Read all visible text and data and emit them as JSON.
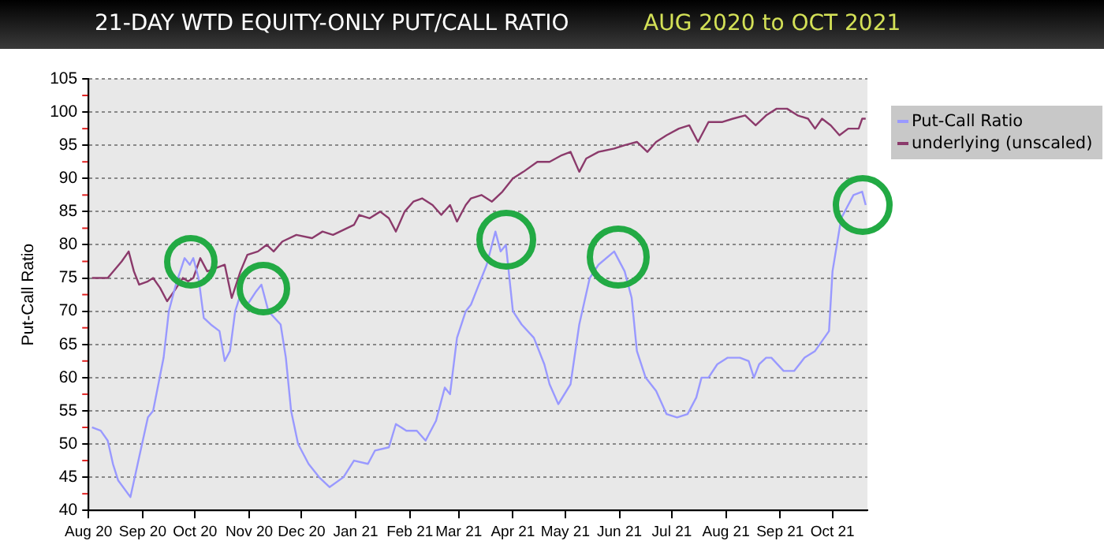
{
  "chart_data": {
    "type": "line",
    "title": "21-DAY WTD EQUITY-ONLY PUT/CALL RATIO",
    "subtitle": "AUG 2020 to OCT 2021",
    "ylabel": "Put-Call Ratio",
    "xlim": [
      "2020-08-01",
      "2021-10-21"
    ],
    "xticks": [
      {
        "value": "2020-08-01",
        "label": "Aug 20"
      },
      {
        "value": "2020-09-01",
        "label": "Sep 20"
      },
      {
        "value": "2020-10-01",
        "label": "Oct 20"
      },
      {
        "value": "2020-11-01",
        "label": "Nov 20"
      },
      {
        "value": "2020-12-01",
        "label": "Dec 20"
      },
      {
        "value": "2021-01-01",
        "label": "Jan 21"
      },
      {
        "value": "2021-02-01",
        "label": "Feb 21"
      },
      {
        "value": "2021-03-01",
        "label": "Mar 21"
      },
      {
        "value": "2021-04-01",
        "label": "Apr 21"
      },
      {
        "value": "2021-05-01",
        "label": "May 21"
      },
      {
        "value": "2021-06-01",
        "label": "Jun 21"
      },
      {
        "value": "2021-07-01",
        "label": "Jul 21"
      },
      {
        "value": "2021-08-01",
        "label": "Aug 21"
      },
      {
        "value": "2021-09-01",
        "label": "Sep 21"
      },
      {
        "value": "2021-10-01",
        "label": "Oct 21"
      }
    ],
    "ylim": [
      40,
      105
    ],
    "yticks": [
      40,
      45,
      50,
      55,
      60,
      65,
      70,
      75,
      80,
      85,
      90,
      95,
      100,
      105
    ],
    "grid": "y",
    "legend": "right",
    "series": [
      {
        "name": "Put-Call Ratio",
        "color": "#9999ff",
        "x": [
          "2020-08-03",
          "2020-08-08",
          "2020-08-12",
          "2020-08-15",
          "2020-08-18",
          "2020-08-25",
          "2020-08-30",
          "2020-09-04",
          "2020-09-07",
          "2020-09-13",
          "2020-09-16",
          "2020-09-20",
          "2020-09-25",
          "2020-09-28",
          "2020-09-30",
          "2020-10-03",
          "2020-10-06",
          "2020-10-10",
          "2020-10-15",
          "2020-10-18",
          "2020-10-21",
          "2020-10-24",
          "2020-10-27",
          "2020-10-31",
          "2020-11-05",
          "2020-11-08",
          "2020-11-12",
          "2020-11-19",
          "2020-11-22",
          "2020-11-25",
          "2020-11-29",
          "2020-12-05",
          "2020-12-11",
          "2020-12-17",
          "2020-12-25",
          "2020-12-31",
          "2021-01-08",
          "2021-01-12",
          "2021-01-20",
          "2021-01-24",
          "2021-01-30",
          "2021-02-05",
          "2021-02-10",
          "2021-02-16",
          "2021-02-21",
          "2021-02-24",
          "2021-02-28",
          "2021-03-05",
          "2021-03-08",
          "2021-03-11",
          "2021-03-17",
          "2021-03-22",
          "2021-03-25",
          "2021-03-28",
          "2021-04-01",
          "2021-04-06",
          "2021-04-13",
          "2021-04-19",
          "2021-04-22",
          "2021-04-27",
          "2021-05-04",
          "2021-05-09",
          "2021-05-15",
          "2021-05-20",
          "2021-05-29",
          "2021-06-04",
          "2021-06-08",
          "2021-06-11",
          "2021-06-16",
          "2021-06-22",
          "2021-06-28",
          "2021-07-04",
          "2021-07-10",
          "2021-07-15",
          "2021-07-18",
          "2021-07-22",
          "2021-07-27",
          "2021-08-02",
          "2021-08-09",
          "2021-08-14",
          "2021-08-17",
          "2021-08-20",
          "2021-08-24",
          "2021-08-27",
          "2021-09-03",
          "2021-09-09",
          "2021-09-15",
          "2021-09-21",
          "2021-09-29",
          "2021-10-01",
          "2021-10-06",
          "2021-10-13",
          "2021-10-18",
          "2021-10-20"
        ],
        "values": [
          52.5,
          52,
          50.5,
          47,
          44.5,
          42,
          48,
          54,
          55,
          63,
          70,
          74,
          78,
          77,
          78,
          75,
          69,
          68,
          67,
          62.5,
          64,
          70,
          72.5,
          71,
          73,
          74,
          70,
          68,
          63,
          55,
          50,
          47,
          45,
          43.5,
          45,
          47.5,
          47,
          49,
          49.5,
          53,
          52,
          52,
          50.5,
          53.5,
          58.5,
          57.5,
          66,
          70,
          71,
          73,
          77,
          82,
          79,
          80,
          70,
          68,
          66,
          62,
          59,
          56,
          59,
          68,
          75,
          77,
          79,
          76,
          72,
          64,
          60,
          58,
          54.5,
          54,
          54.5,
          57,
          60,
          60,
          62,
          63,
          63,
          62.5,
          60,
          62,
          63,
          63,
          61,
          61,
          63,
          64,
          67,
          76,
          84,
          87.5,
          88,
          86
        ]
      },
      {
        "name": "underlying (unscaled)",
        "color": "#8b3a6b",
        "x": [
          "2020-08-03",
          "2020-08-08",
          "2020-08-12",
          "2020-08-20",
          "2020-08-24",
          "2020-08-27",
          "2020-08-30",
          "2020-09-04",
          "2020-09-07",
          "2020-09-11",
          "2020-09-15",
          "2020-09-19",
          "2020-09-24",
          "2020-09-27",
          "2020-09-30",
          "2020-10-04",
          "2020-10-08",
          "2020-10-13",
          "2020-10-18",
          "2020-10-22",
          "2020-10-27",
          "2020-10-31",
          "2020-11-06",
          "2020-11-11",
          "2020-11-15",
          "2020-11-20",
          "2020-11-28",
          "2020-12-07",
          "2020-12-13",
          "2020-12-19",
          "2020-12-27",
          "2020-12-31",
          "2021-01-03",
          "2021-01-09",
          "2021-01-15",
          "2021-01-20",
          "2021-01-24",
          "2021-01-29",
          "2021-02-03",
          "2021-02-08",
          "2021-02-14",
          "2021-02-19",
          "2021-02-24",
          "2021-02-28",
          "2021-03-05",
          "2021-03-08",
          "2021-03-14",
          "2021-03-20",
          "2021-03-26",
          "2021-04-01",
          "2021-04-07",
          "2021-04-15",
          "2021-04-22",
          "2021-04-29",
          "2021-05-04",
          "2021-05-09",
          "2021-05-13",
          "2021-05-20",
          "2021-05-29",
          "2021-06-04",
          "2021-06-11",
          "2021-06-17",
          "2021-06-22",
          "2021-06-28",
          "2021-07-05",
          "2021-07-11",
          "2021-07-16",
          "2021-07-22",
          "2021-07-30",
          "2021-08-05",
          "2021-08-12",
          "2021-08-18",
          "2021-08-24",
          "2021-08-30",
          "2021-09-05",
          "2021-09-11",
          "2021-09-17",
          "2021-09-21",
          "2021-09-25",
          "2021-09-30",
          "2021-10-05",
          "2021-10-10",
          "2021-10-16",
          "2021-10-18",
          "2021-10-20"
        ],
        "values": [
          75,
          75,
          75,
          77.5,
          79,
          76,
          74,
          74.5,
          75,
          73.5,
          71.5,
          73,
          75,
          74.5,
          75,
          78,
          76,
          76.5,
          77,
          72,
          76,
          78.5,
          79,
          80,
          79,
          80.5,
          81.5,
          81,
          82,
          81.5,
          82.5,
          83,
          84.5,
          84,
          85,
          84,
          82,
          85,
          86.5,
          87,
          86,
          84.5,
          86,
          83.5,
          86,
          87,
          87.5,
          86.5,
          88,
          90,
          91,
          92.5,
          92.5,
          93.5,
          94,
          91,
          93,
          94,
          94.5,
          95,
          95.5,
          94,
          95.5,
          96.5,
          97.5,
          98,
          95.5,
          98.5,
          98.5,
          99,
          99.5,
          98,
          99.5,
          100.5,
          100.5,
          99.5,
          99,
          97.5,
          99,
          98,
          96.5,
          97.5,
          97.5,
          99,
          99
        ]
      }
    ]
  }
}
